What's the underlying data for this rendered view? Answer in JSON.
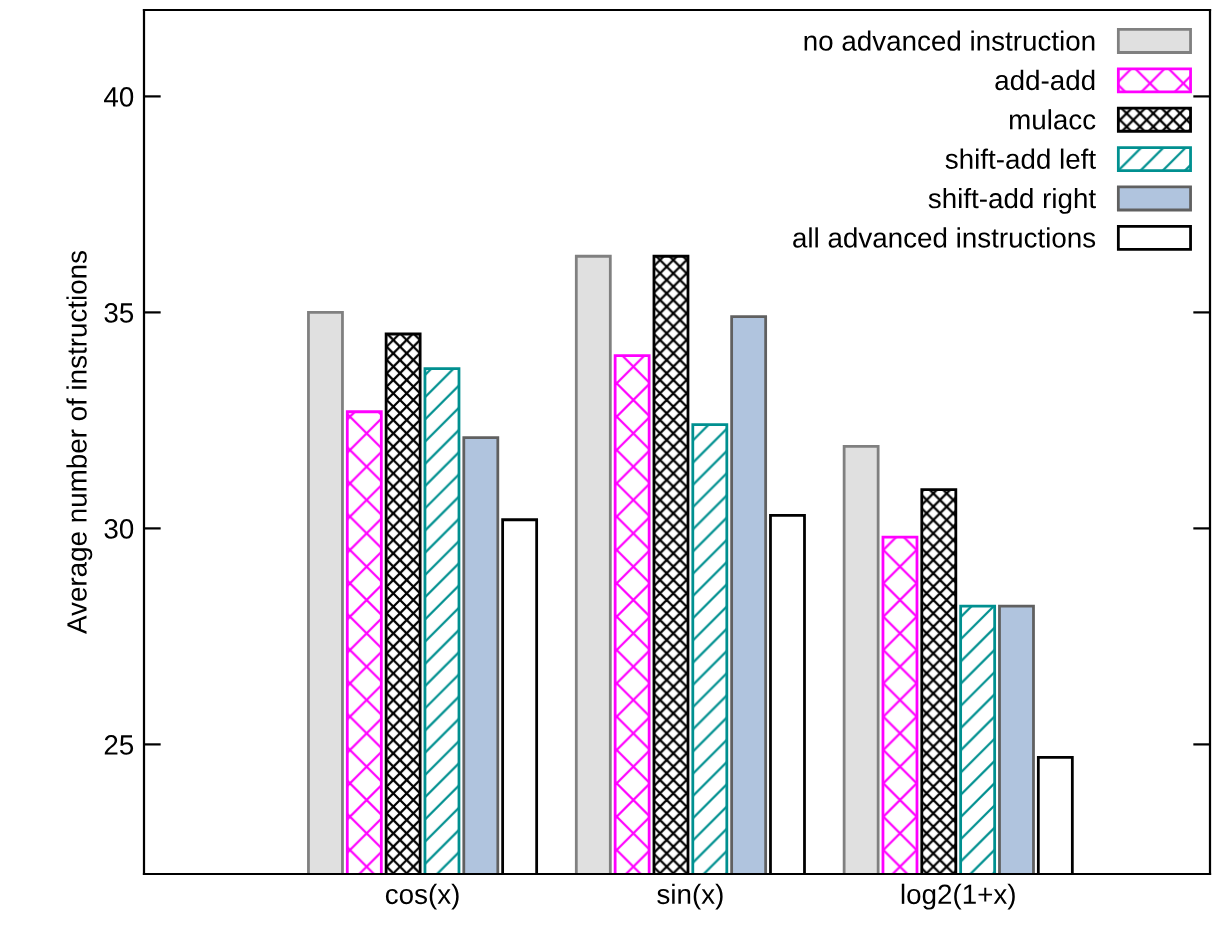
{
  "chart_data": {
    "type": "bar",
    "ylabel": "Average number of instructions",
    "categories": [
      "cos(x)",
      "sin(x)",
      "log2(1+x)"
    ],
    "series": [
      {
        "name": "no advanced instruction",
        "color": "#e0e0e0",
        "values": [
          35.0,
          36.3,
          31.9
        ]
      },
      {
        "name": "add-add",
        "color": "#ff00ff",
        "values": [
          32.7,
          34.0,
          29.8
        ]
      },
      {
        "name": "mulacc",
        "color": "#000000",
        "values": [
          34.5,
          36.3,
          30.9
        ]
      },
      {
        "name": "shift-add left",
        "color": "#009090",
        "values": [
          33.7,
          32.4,
          28.2
        ]
      },
      {
        "name": "shift-add right",
        "color": "#b0c4de",
        "values": [
          32.1,
          34.9,
          28.2
        ]
      },
      {
        "name": "all advanced instructions",
        "color": "#ffffff",
        "values": [
          30.2,
          30.3,
          24.7
        ]
      }
    ],
    "ylim": [
      22,
      42
    ],
    "yticks": [
      25,
      30,
      35,
      40
    ],
    "grid": false,
    "legend": "top right"
  }
}
